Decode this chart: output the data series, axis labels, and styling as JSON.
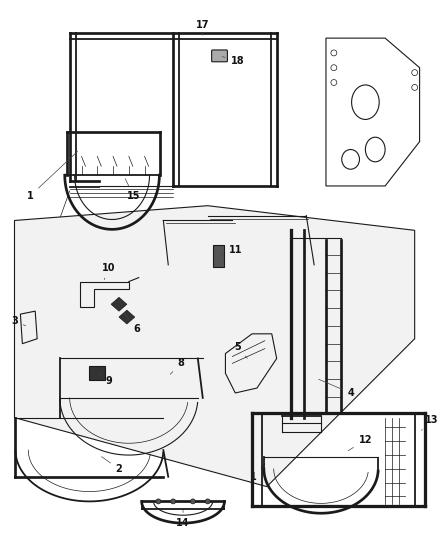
{
  "background_color": "#ffffff",
  "figure_width": 4.38,
  "figure_height": 5.33,
  "dpi": 100,
  "line_color": "#1a1a1a",
  "panel_color": "#f5f5f5"
}
